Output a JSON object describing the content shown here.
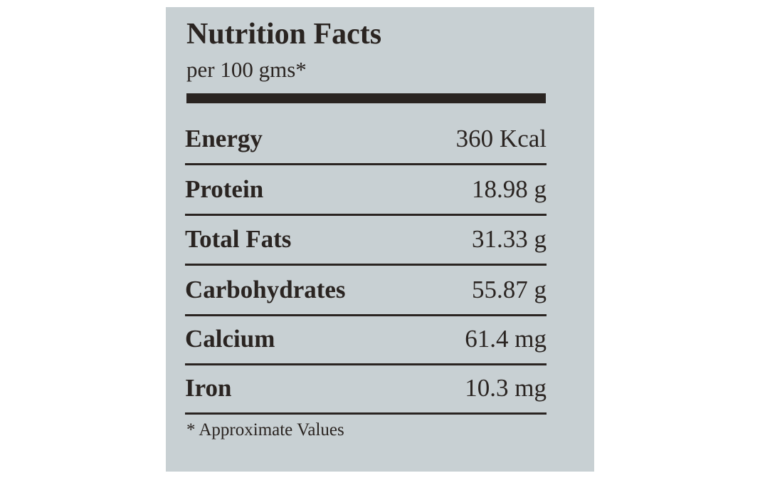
{
  "header": {
    "title": "Nutrition Facts",
    "subtitle": "per 100 gms*"
  },
  "table": {
    "rows": [
      [
        "Energy",
        "360 Kcal"
      ],
      [
        "Protein",
        "18.98 g"
      ],
      [
        "Total Fats",
        "31.33 g"
      ],
      [
        "Carbohydrates",
        "55.87 g"
      ],
      [
        "Calcium",
        "61.4 mg"
      ],
      [
        "Iron",
        "10.3 mg"
      ]
    ]
  },
  "footnote": "* Approximate Values"
}
